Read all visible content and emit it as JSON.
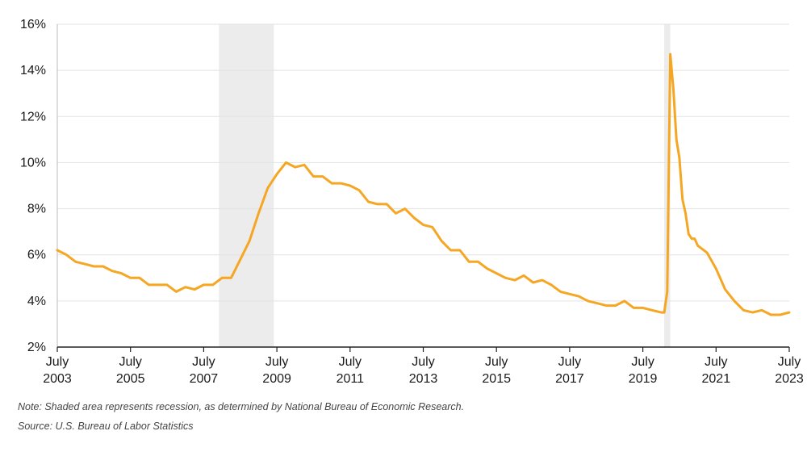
{
  "chart_data": {
    "type": "line",
    "title": "",
    "xlabel": "",
    "ylabel": "",
    "ylim": [
      2,
      16
    ],
    "xlim": [
      "2003-07",
      "2023-07"
    ],
    "y_ticks": [
      2,
      4,
      6,
      8,
      10,
      12,
      14,
      16
    ],
    "y_tick_labels": [
      "2%",
      "4%",
      "6%",
      "8%",
      "10%",
      "12%",
      "14%",
      "16%"
    ],
    "x_ticks": [
      {
        "month": "July",
        "year": "2003",
        "date": "2003-07"
      },
      {
        "month": "July",
        "year": "2005",
        "date": "2005-07"
      },
      {
        "month": "July",
        "year": "2007",
        "date": "2007-07"
      },
      {
        "month": "July",
        "year": "2009",
        "date": "2009-07"
      },
      {
        "month": "July",
        "year": "2011",
        "date": "2011-07"
      },
      {
        "month": "July",
        "year": "2013",
        "date": "2013-07"
      },
      {
        "month": "July",
        "year": "2015",
        "date": "2015-07"
      },
      {
        "month": "July",
        "year": "2017",
        "date": "2017-07"
      },
      {
        "month": "July",
        "year": "2019",
        "date": "2019-07"
      },
      {
        "month": "July",
        "year": "2021",
        "date": "2021-07"
      },
      {
        "month": "July",
        "year": "2023",
        "date": "2023-07"
      }
    ],
    "grid": {
      "horizontal": true,
      "vertical": false
    },
    "legend": "none",
    "recessions": [
      {
        "start": "2007-12",
        "end": "2009-06"
      },
      {
        "start": "2020-02",
        "end": "2020-04"
      }
    ],
    "series": [
      {
        "color": "#f5a623",
        "x": [
          "2003-07",
          "2003-10",
          "2004-01",
          "2004-04",
          "2004-07",
          "2004-10",
          "2005-01",
          "2005-04",
          "2005-07",
          "2005-10",
          "2006-01",
          "2006-04",
          "2006-07",
          "2006-10",
          "2007-01",
          "2007-04",
          "2007-07",
          "2007-10",
          "2008-01",
          "2008-04",
          "2008-07",
          "2008-10",
          "2009-01",
          "2009-04",
          "2009-07",
          "2009-10",
          "2010-01",
          "2010-04",
          "2010-07",
          "2010-10",
          "2011-01",
          "2011-04",
          "2011-07",
          "2011-10",
          "2012-01",
          "2012-04",
          "2012-07",
          "2012-10",
          "2013-01",
          "2013-04",
          "2013-07",
          "2013-10",
          "2014-01",
          "2014-04",
          "2014-07",
          "2014-10",
          "2015-01",
          "2015-04",
          "2015-07",
          "2015-10",
          "2016-01",
          "2016-04",
          "2016-07",
          "2016-10",
          "2017-01",
          "2017-04",
          "2017-07",
          "2017-10",
          "2018-01",
          "2018-04",
          "2018-07",
          "2018-10",
          "2019-01",
          "2019-04",
          "2019-07",
          "2019-10",
          "2020-01",
          "2020-02",
          "2020-03",
          "2020-04",
          "2020-05",
          "2020-06",
          "2020-07",
          "2020-08",
          "2020-09",
          "2020-10",
          "2020-11",
          "2020-12",
          "2021-01",
          "2021-04",
          "2021-07",
          "2021-10",
          "2022-01",
          "2022-04",
          "2022-07",
          "2022-10",
          "2023-01",
          "2023-04",
          "2023-07"
        ],
        "values": [
          6.2,
          6.0,
          5.7,
          5.6,
          5.5,
          5.5,
          5.3,
          5.2,
          5.0,
          5.0,
          4.7,
          4.7,
          4.7,
          4.4,
          4.6,
          4.5,
          4.7,
          4.7,
          5.0,
          5.0,
          5.8,
          6.6,
          7.8,
          8.9,
          9.5,
          10.0,
          9.8,
          9.9,
          9.4,
          9.4,
          9.1,
          9.1,
          9.0,
          8.8,
          8.3,
          8.2,
          8.2,
          7.8,
          8.0,
          7.6,
          7.3,
          7.2,
          6.6,
          6.2,
          6.2,
          5.7,
          5.7,
          5.4,
          5.2,
          5.0,
          4.9,
          5.1,
          4.8,
          4.9,
          4.7,
          4.4,
          4.3,
          4.2,
          4.0,
          3.9,
          3.8,
          3.8,
          4.0,
          3.7,
          3.7,
          3.6,
          3.5,
          3.5,
          4.4,
          14.7,
          13.2,
          11.0,
          10.2,
          8.4,
          7.8,
          6.9,
          6.7,
          6.7,
          6.4,
          6.1,
          5.4,
          4.5,
          4.0,
          3.6,
          3.5,
          3.6,
          3.4,
          3.4,
          3.5
        ]
      }
    ],
    "notes": [
      "Note: Shaded area represents recession, as determined by National Bureau of Economic Research.",
      "Source: U.S. Bureau of Labor Statistics"
    ]
  }
}
